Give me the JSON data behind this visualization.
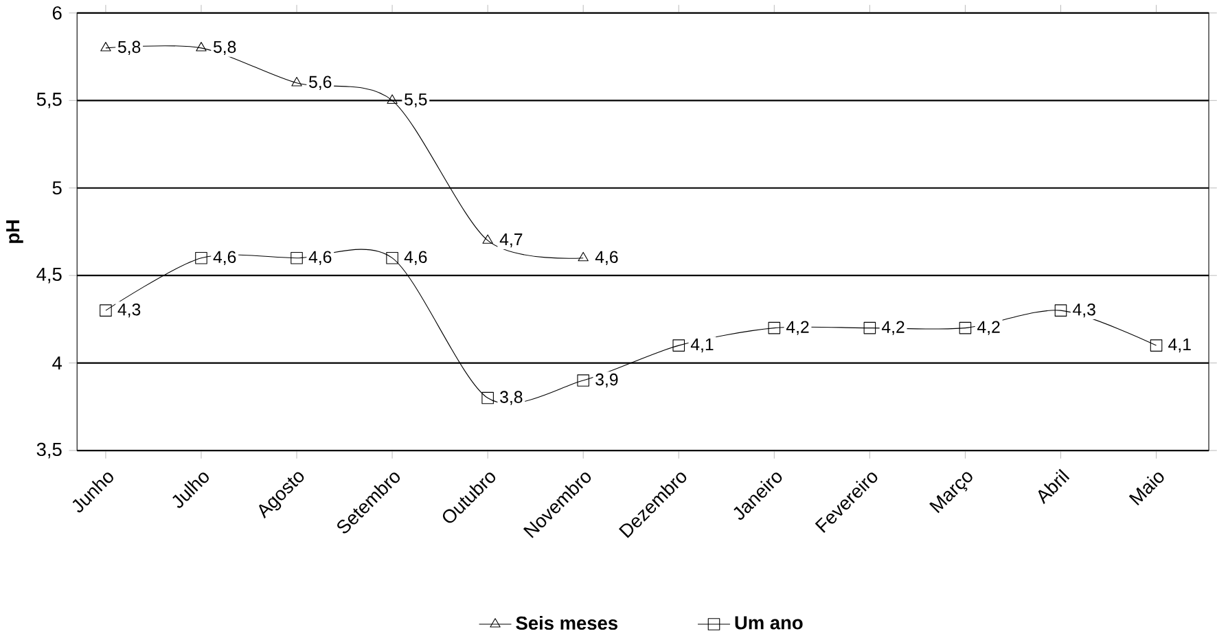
{
  "chart_data": {
    "type": "line",
    "ylabel": "pH",
    "categories": [
      "Junho",
      "Julho",
      "Agosto",
      "Setembro",
      "Outubro",
      "Novembro",
      "Dezembro",
      "Janeiro",
      "Fevereiro",
      "Março",
      "Abril",
      "Maio"
    ],
    "series": [
      {
        "name": "Seis meses",
        "color": "#000000",
        "marker": "triangle",
        "values": [
          5.8,
          5.8,
          5.6,
          5.5,
          4.7,
          4.6,
          null,
          null,
          null,
          null,
          null,
          null
        ],
        "value_labels": [
          "5,8",
          "5,8",
          "5,6",
          "5,5",
          "4,7",
          "4,6",
          null,
          null,
          null,
          null,
          null,
          null
        ]
      },
      {
        "name": "Um ano",
        "color": "#000000",
        "marker": "square",
        "values": [
          4.3,
          4.6,
          4.6,
          4.6,
          3.8,
          3.9,
          4.1,
          4.2,
          4.2,
          4.2,
          4.3,
          4.1
        ],
        "value_labels": [
          "4,3",
          "4,6",
          "4,6",
          "4,6",
          "3,8",
          "3,9",
          "4,1",
          "4,2",
          "4,2",
          "4,2",
          "4,3",
          "4,1"
        ]
      }
    ],
    "ylim": [
      3.5,
      6
    ],
    "yticks": [
      {
        "value": 3.5,
        "label": "3,5"
      },
      4,
      {
        "value": 4.5,
        "label": "4,5"
      },
      5,
      {
        "value": 5.5,
        "label": "5,5"
      },
      6
    ],
    "grid": "y",
    "legend": "bottom"
  }
}
